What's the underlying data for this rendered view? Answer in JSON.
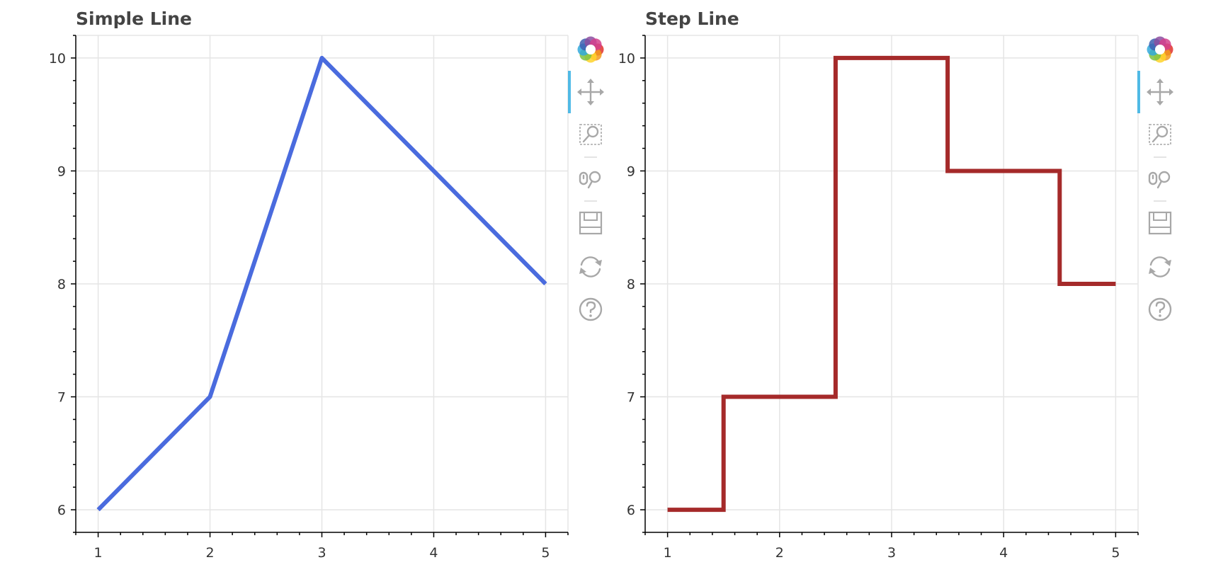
{
  "chart_data": [
    {
      "type": "line",
      "title": "Simple Line",
      "xlabel": "",
      "ylabel": "",
      "x": [
        1,
        2,
        3,
        4,
        5
      ],
      "series": [
        {
          "values": [
            6,
            7,
            10,
            9,
            8
          ],
          "color": "#4a6bde"
        }
      ],
      "xlim": [
        0.8,
        5.2
      ],
      "ylim": [
        5.8,
        10.2
      ],
      "xticks": [
        1,
        2,
        3,
        4,
        5
      ],
      "yticks": [
        6,
        7,
        8,
        9,
        10
      ],
      "grid": true,
      "legend": "none"
    },
    {
      "type": "line",
      "step": "center",
      "title": "Step Line",
      "xlabel": "",
      "ylabel": "",
      "x": [
        1,
        2,
        3,
        4,
        5
      ],
      "series": [
        {
          "values": [
            6,
            7,
            10,
            9,
            8
          ],
          "color": "#a52a2a"
        }
      ],
      "xlim": [
        0.8,
        5.2
      ],
      "ylim": [
        5.8,
        10.2
      ],
      "xticks": [
        1,
        2,
        3,
        4,
        5
      ],
      "yticks": [
        6,
        7,
        8,
        9,
        10
      ],
      "grid": true,
      "legend": "none"
    }
  ],
  "toolbar": {
    "tools": [
      "bokeh-logo-icon",
      "pan-icon",
      "box-zoom-icon",
      "wheel-zoom-icon",
      "save-icon",
      "reset-icon",
      "help-icon"
    ],
    "active_tool": "pan-icon",
    "icon_color": "#a8a8a8",
    "active_color": "#26aae1"
  }
}
